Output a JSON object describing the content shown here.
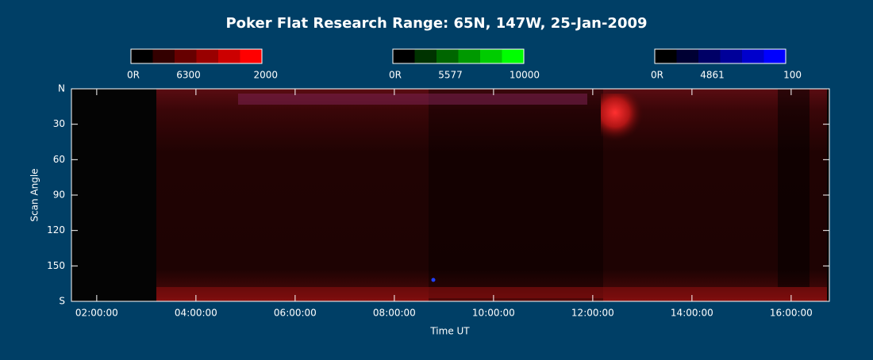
{
  "chart_data": {
    "type": "keogram",
    "title": "Poker Flat Research Range: 65N, 147W, 25-Jan-2009",
    "x_label": "Time UT",
    "y_label": "Scan Angle",
    "xlim": [
      1.49,
      16.77
    ],
    "xticks": [
      {
        "value": 2,
        "label": "02:00:00"
      },
      {
        "value": 4,
        "label": "04:00:00"
      },
      {
        "value": 6,
        "label": "06:00:00"
      },
      {
        "value": 8,
        "label": "08:00:00"
      },
      {
        "value": 10,
        "label": "10:00:00"
      },
      {
        "value": 12,
        "label": "12:00:00"
      },
      {
        "value": 14,
        "label": "14:00:00"
      },
      {
        "value": 16,
        "label": "16:00:00"
      }
    ],
    "ylim": [
      0,
      180
    ],
    "y_inverted": true,
    "yticks": [
      {
        "value": 0,
        "label": "N"
      },
      30,
      60,
      90,
      120,
      150,
      {
        "value": 180,
        "label": "S"
      }
    ],
    "colorbars": [
      {
        "colors": [
          "#000000",
          "#330000",
          "#660000",
          "#990000",
          "#cc0000",
          "#ff0000"
        ],
        "labels": [
          "0R",
          "6300",
          "2000"
        ]
      },
      {
        "colors": [
          "#000000",
          "#003300",
          "#006600",
          "#009900",
          "#00cc00",
          "#00ff00"
        ],
        "labels": [
          "0R",
          "5577",
          "10000"
        ]
      },
      {
        "colors": [
          "#000000",
          "#000033",
          "#000066",
          "#000099",
          "#0000cc",
          "#0000ff"
        ],
        "labels": [
          "0R",
          "4861",
          "100"
        ]
      }
    ]
  }
}
